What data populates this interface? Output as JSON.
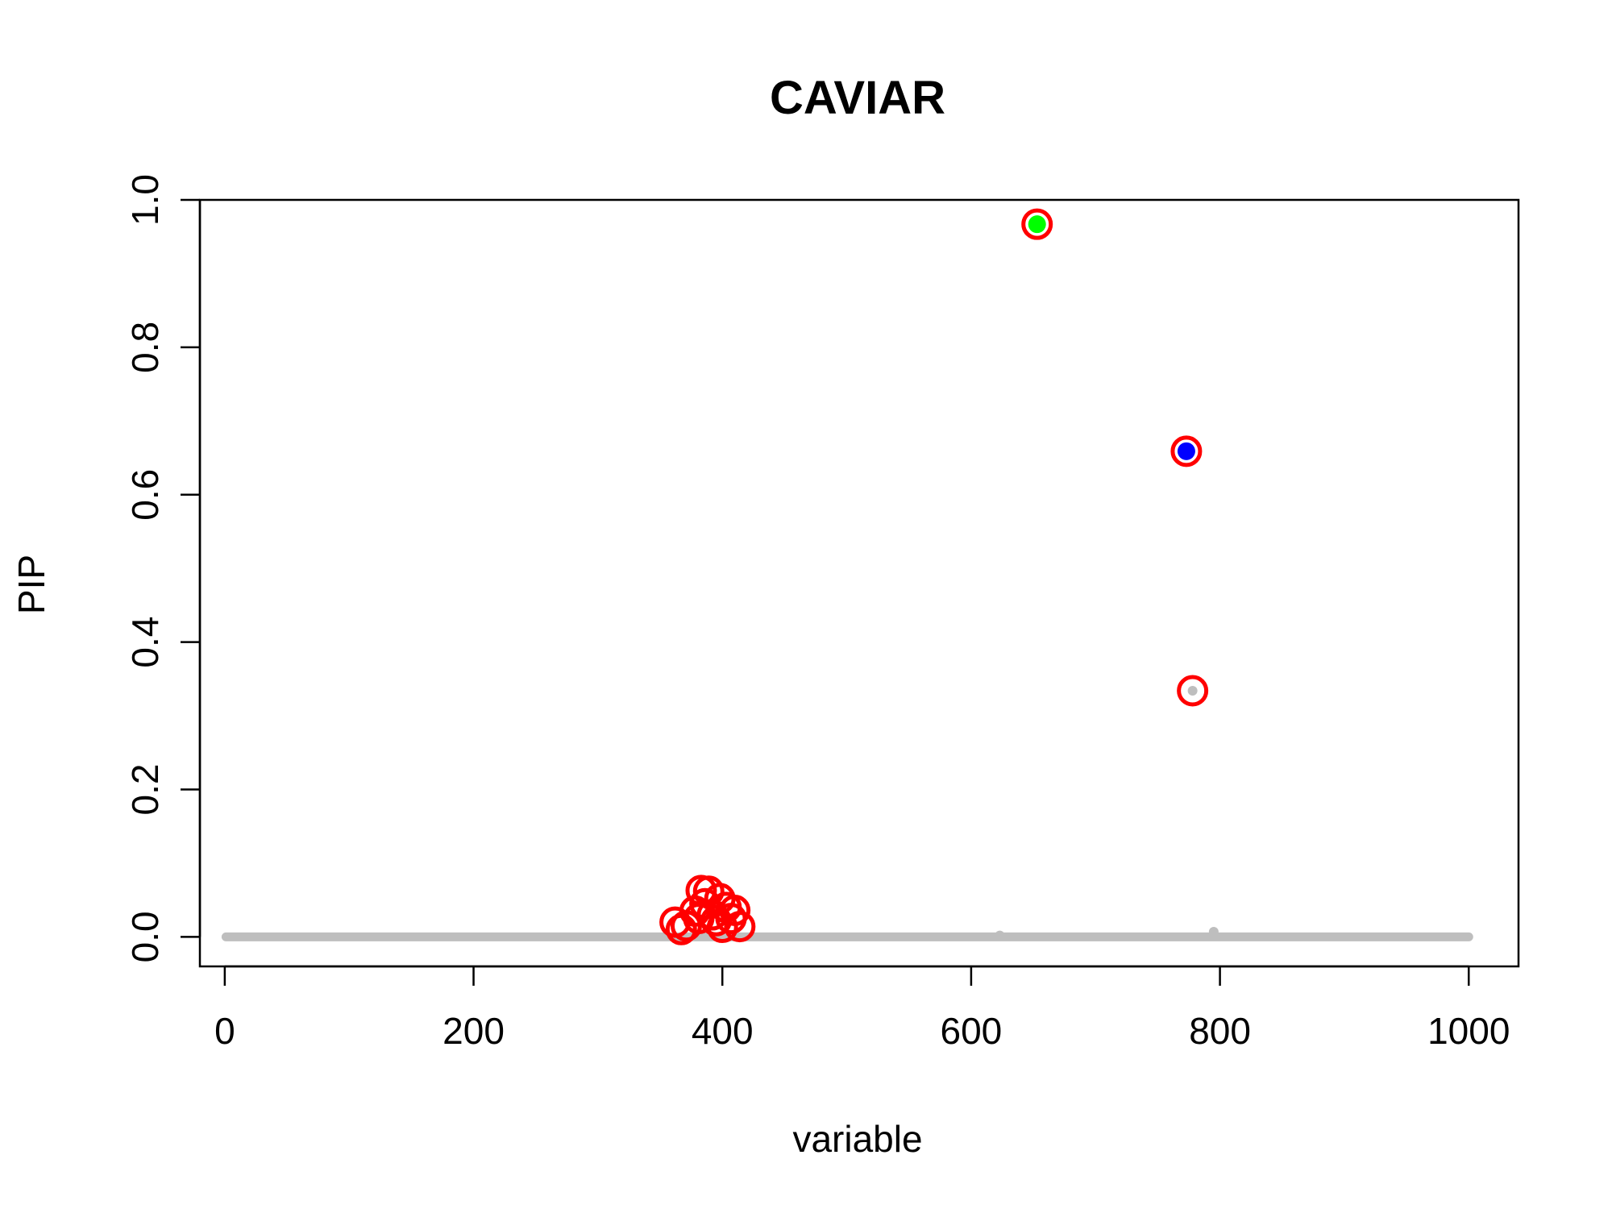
{
  "chart_data": {
    "type": "scatter",
    "title": "CAVIAR",
    "xlabel": "variable",
    "ylabel": "PIP",
    "xlim": [
      -20,
      1040
    ],
    "ylim": [
      -0.04,
      1.0
    ],
    "x_ticks": [
      0,
      200,
      400,
      600,
      800,
      1000
    ],
    "x_tick_labels": [
      "0",
      "200",
      "400",
      "600",
      "800",
      "1000"
    ],
    "y_ticks": [
      0.0,
      0.2,
      0.4,
      0.6,
      0.8,
      1.0
    ],
    "y_tick_labels": [
      "0.0",
      "0.2",
      "0.4",
      "0.6",
      "0.8",
      "1.0"
    ],
    "grid": false,
    "baseline": {
      "x_start": 1,
      "x_end": 1000,
      "y": 0.0,
      "color": "#bebebe"
    },
    "background_points": [
      {
        "x": 623,
        "y": 0.002,
        "color": "#bebebe"
      },
      {
        "x": 795,
        "y": 0.007,
        "color": "#bebebe"
      },
      {
        "x": 778,
        "y": 0.334,
        "color": "#bebebe"
      }
    ],
    "highlight_points": [
      {
        "x": 653,
        "y": 0.967,
        "color": "#00ff00"
      },
      {
        "x": 773,
        "y": 0.659,
        "color": "#0000ff"
      }
    ],
    "red_circles": [
      {
        "x": 653,
        "y": 0.967
      },
      {
        "x": 773,
        "y": 0.659
      },
      {
        "x": 778,
        "y": 0.334
      },
      {
        "x": 362,
        "y": 0.02
      },
      {
        "x": 367,
        "y": 0.01
      },
      {
        "x": 371,
        "y": 0.015
      },
      {
        "x": 378,
        "y": 0.035
      },
      {
        "x": 381,
        "y": 0.025
      },
      {
        "x": 383,
        "y": 0.063
      },
      {
        "x": 386,
        "y": 0.045
      },
      {
        "x": 389,
        "y": 0.062
      },
      {
        "x": 392,
        "y": 0.03
      },
      {
        "x": 395,
        "y": 0.022
      },
      {
        "x": 398,
        "y": 0.052
      },
      {
        "x": 400,
        "y": 0.013
      },
      {
        "x": 403,
        "y": 0.04
      },
      {
        "x": 407,
        "y": 0.025
      },
      {
        "x": 410,
        "y": 0.036
      },
      {
        "x": 414,
        "y": 0.014
      }
    ],
    "colors": {
      "circle": "#ff0000",
      "baseline": "#bebebe",
      "axis": "#000000"
    }
  }
}
